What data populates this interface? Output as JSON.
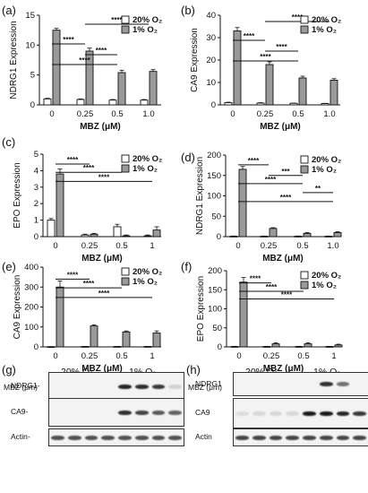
{
  "colors": {
    "o2_20": "#ffffff",
    "o2_1": "#9a9a9a",
    "edge": "#111111"
  },
  "chart_data": [
    {
      "panel": "(a)",
      "type": "bar",
      "categories": [
        "0",
        "0.25",
        "0.5",
        "1.0"
      ],
      "xlabel": "MBZ (μM)",
      "ylabel": "NDRG1 Expression",
      "ylim": [
        0,
        15
      ],
      "yticks": [
        "0",
        "5",
        "10",
        "15"
      ],
      "legend": [
        "20% O₂",
        "1% O₂"
      ],
      "legend_position": "top-right",
      "series": [
        {
          "name": "20% O₂",
          "values": [
            1.0,
            0.9,
            0.8,
            0.8
          ],
          "errors": [
            0.1,
            0.1,
            0.1,
            0.1
          ]
        },
        {
          "name": "1% O₂",
          "values": [
            12.5,
            9.0,
            5.4,
            5.6
          ],
          "errors": [
            0.3,
            0.5,
            0.4,
            0.3
          ]
        }
      ],
      "significance": [
        "****",
        "****",
        "****",
        "****"
      ]
    },
    {
      "panel": "(b)",
      "type": "bar",
      "categories": [
        "0",
        "0.25",
        "0.5",
        "1.0"
      ],
      "xlabel": "MBZ (μM)",
      "ylabel": "CA9 Expression",
      "ylim": [
        0,
        40
      ],
      "yticks": [
        "0",
        "10",
        "20",
        "30",
        "40"
      ],
      "legend": [
        "20% O₂",
        "1% O₂"
      ],
      "legend_position": "top-right",
      "series": [
        {
          "name": "20% O₂",
          "values": [
            1.0,
            0.8,
            0.7,
            0.6
          ],
          "errors": [
            0.2,
            0.2,
            0.1,
            0.1
          ]
        },
        {
          "name": "1% O₂",
          "values": [
            33,
            18,
            12,
            11
          ],
          "errors": [
            1.5,
            1.2,
            0.8,
            0.7
          ]
        }
      ],
      "significance": [
        "****",
        "****",
        "****",
        "****"
      ]
    },
    {
      "panel": "(c)",
      "type": "bar",
      "categories": [
        "0",
        "0.25",
        "0.5",
        "1"
      ],
      "xlabel": "MBZ (μM)",
      "ylabel": "EPO Expression",
      "ylim": [
        0,
        5
      ],
      "yticks": [
        "0",
        "1",
        "2",
        "3",
        "4",
        "5"
      ],
      "legend": [
        "20% O₂",
        "1% O₂"
      ],
      "legend_position": "top-right",
      "series": [
        {
          "name": "20% O₂",
          "values": [
            1.0,
            0.1,
            0.6,
            0.05
          ],
          "errors": [
            0.1,
            0.05,
            0.15,
            0.05
          ]
        },
        {
          "name": "1% O₂",
          "values": [
            3.8,
            0.15,
            0.05,
            0.4
          ],
          "errors": [
            0.3,
            0.05,
            0.05,
            0.2
          ]
        }
      ],
      "significance": [
        "****",
        "****",
        "****"
      ]
    },
    {
      "panel": "(d)",
      "type": "bar",
      "categories": [
        "0",
        "0.25",
        "0.5",
        "1.0"
      ],
      "xlabel": "MBZ (μM)",
      "ylabel": "NDRG1 Expression",
      "ylim": [
        0,
        200
      ],
      "yticks": [
        "0",
        "50",
        "100",
        "150",
        "200"
      ],
      "legend": [
        "20% O₂",
        "1% O₂"
      ],
      "legend_position": "top-right",
      "series": [
        {
          "name": "20% O₂",
          "values": [
            1,
            1,
            1,
            1
          ],
          "errors": [
            0.5,
            0.5,
            0.5,
            0.5
          ]
        },
        {
          "name": "1% O₂",
          "values": [
            165,
            20,
            8,
            10
          ],
          "errors": [
            7,
            2,
            2,
            2
          ]
        }
      ],
      "significance": [
        "****",
        "***",
        "****",
        "**",
        "****"
      ]
    },
    {
      "panel": "(e)",
      "type": "bar",
      "categories": [
        "0",
        "0.25",
        "0.5",
        "1"
      ],
      "xlabel": "MBZ (μM)",
      "ylabel": "CA9 Expression",
      "ylim": [
        0,
        400
      ],
      "yticks": [
        "0",
        "100",
        "200",
        "300",
        "400"
      ],
      "legend": [
        "20% O₂",
        "1% O₂"
      ],
      "legend_position": "top-right",
      "series": [
        {
          "name": "20% O₂",
          "values": [
            1,
            2,
            2,
            2
          ],
          "errors": [
            0.5,
            0.5,
            0.5,
            0.5
          ]
        },
        {
          "name": "1% O₂",
          "values": [
            300,
            105,
            75,
            70
          ],
          "errors": [
            30,
            5,
            5,
            10
          ]
        }
      ],
      "significance": [
        "****",
        "****",
        "****"
      ]
    },
    {
      "panel": "(f)",
      "type": "bar",
      "categories": [
        "0",
        "0.25",
        "0.5",
        "1"
      ],
      "xlabel": "MBZ (μM)",
      "ylabel": "EPO Expression",
      "ylim": [
        0,
        200
      ],
      "yticks": [
        "0",
        "50",
        "100",
        "150",
        "200"
      ],
      "legend": [
        "20% O₂",
        "1% O₂"
      ],
      "legend_position": "top-right",
      "series": [
        {
          "name": "20% O₂",
          "values": [
            1,
            1,
            1,
            1
          ],
          "errors": [
            0.5,
            0.5,
            0.5,
            0.5
          ]
        },
        {
          "name": "1% O₂",
          "values": [
            170,
            8,
            8,
            5
          ],
          "errors": [
            12,
            3,
            3,
            2
          ]
        }
      ],
      "significance": [
        "****",
        "****",
        "****"
      ]
    }
  ],
  "blots": [
    {
      "panel": "(g)",
      "mbz_label": "MBZ (μm)",
      "groups": [
        "20% O₂",
        "1% O₂"
      ],
      "concentrations": [
        "0",
        "0.25",
        "0.5",
        "1.0",
        "0",
        "0.25",
        "0.5",
        "1.0"
      ],
      "rows": [
        "NDRG1",
        "CA9",
        "Actin"
      ],
      "intensity": [
        [
          0,
          0,
          0,
          0,
          0.95,
          0.9,
          0.85,
          0.15
        ],
        [
          0,
          0,
          0,
          0,
          0.9,
          0.8,
          0.7,
          0.65
        ],
        [
          0.75,
          0.75,
          0.75,
          0.75,
          0.75,
          0.75,
          0.75,
          0.75
        ]
      ]
    },
    {
      "panel": "(h)",
      "mbz_label": "MBZ (μm)",
      "groups": [
        "20% O₂",
        "1% O₂"
      ],
      "concentrations": [
        "0",
        "0.25",
        "0.5",
        "1.0",
        "0",
        "0.25",
        "0.5",
        "1.0"
      ],
      "rows": [
        "NDRG1",
        "CA9",
        "Actin"
      ],
      "intensity": [
        [
          0,
          0,
          0,
          0,
          0,
          0.9,
          0.6,
          0
        ],
        [
          0.1,
          0.12,
          0.12,
          0.12,
          1.0,
          1.0,
          0.95,
          0.85
        ],
        [
          0.8,
          0.8,
          0.8,
          0.8,
          0.8,
          0.8,
          0.8,
          0.8
        ]
      ]
    }
  ]
}
